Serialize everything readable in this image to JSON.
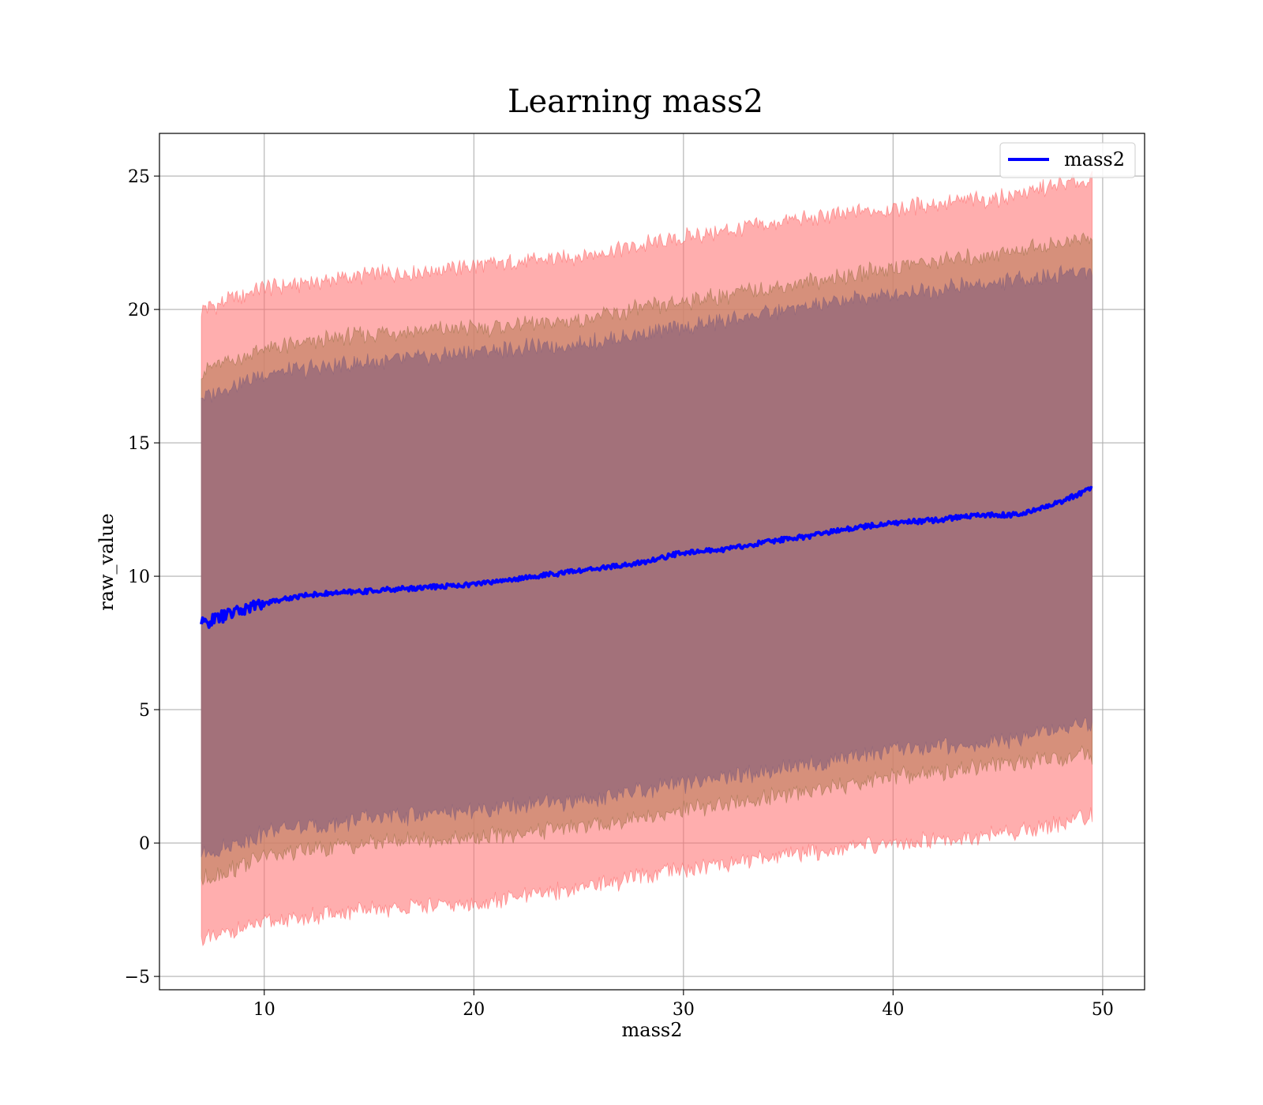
{
  "chart_data": {
    "type": "line",
    "title": "Learning mass2",
    "xlabel": "mass2",
    "ylabel": "raw_value",
    "xlim": [
      5,
      52
    ],
    "ylim": [
      -5.5,
      26.6
    ],
    "xticks": [
      10,
      20,
      30,
      40,
      50
    ],
    "yticks": [
      -5,
      0,
      5,
      10,
      15,
      20,
      25
    ],
    "xtick_labels": [
      "10",
      "20",
      "30",
      "40",
      "50"
    ],
    "ytick_labels": [
      "−5",
      "0",
      "5",
      "10",
      "15",
      "20",
      "25"
    ],
    "grid": true,
    "legend": {
      "position": "top-right",
      "entries": [
        "mass2"
      ]
    },
    "colors": {
      "line": "#0000ff",
      "band_outer": "#ff6b6b",
      "band_mid": "#c8866a",
      "band_inner": "#a0707a",
      "grid": "#b0b0b0"
    },
    "series": [
      {
        "name": "mass2",
        "x": [
          7,
          8,
          10,
          12,
          14,
          16,
          18,
          20,
          22,
          24,
          26,
          28,
          30,
          32,
          34,
          36,
          38,
          40,
          42,
          44,
          46,
          48,
          49.5
        ],
        "values": [
          8.2,
          8.5,
          9.0,
          9.3,
          9.4,
          9.5,
          9.6,
          9.7,
          9.9,
          10.1,
          10.3,
          10.5,
          10.9,
          11.0,
          11.3,
          11.5,
          11.8,
          12.0,
          12.1,
          12.3,
          12.3,
          12.8,
          13.3
        ]
      }
    ],
    "bands": [
      {
        "role": "outer",
        "x": [
          7,
          10,
          15,
          20,
          25,
          30,
          35,
          40,
          45,
          49.5
        ],
        "lower": [
          -3.7,
          -3.0,
          -2.5,
          -2.3,
          -1.7,
          -1.0,
          -0.4,
          0.0,
          0.3,
          1.0
        ],
        "upper": [
          20.0,
          20.8,
          21.3,
          21.6,
          22.0,
          22.7,
          23.3,
          23.8,
          24.2,
          24.9
        ]
      },
      {
        "role": "mid",
        "x": [
          7,
          10,
          15,
          20,
          25,
          30,
          35,
          40,
          45,
          49.5
        ],
        "lower": [
          -1.4,
          -0.5,
          0.0,
          0.2,
          0.6,
          1.2,
          1.8,
          2.5,
          2.9,
          3.3
        ],
        "upper": [
          17.7,
          18.5,
          19.1,
          19.3,
          19.6,
          20.3,
          20.9,
          21.6,
          22.1,
          22.7
        ]
      },
      {
        "role": "inner",
        "x": [
          7,
          10,
          15,
          20,
          25,
          30,
          35,
          40,
          45,
          49.5
        ],
        "lower": [
          -0.5,
          0.4,
          0.9,
          1.2,
          1.6,
          2.2,
          2.8,
          3.5,
          3.8,
          4.5
        ],
        "upper": [
          16.7,
          17.6,
          18.0,
          18.4,
          18.7,
          19.3,
          20.0,
          20.6,
          21.0,
          21.5
        ]
      }
    ]
  }
}
